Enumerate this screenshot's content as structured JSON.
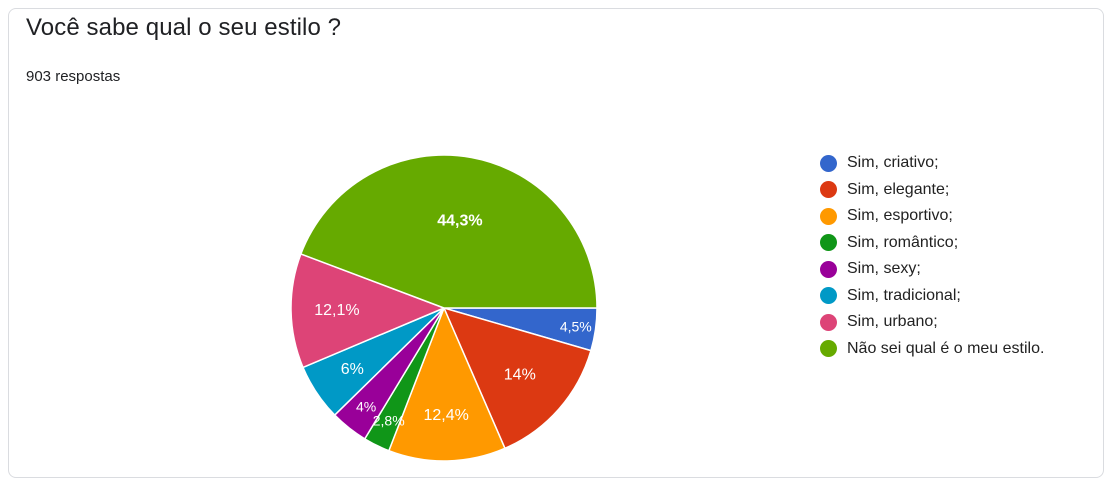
{
  "question": {
    "title": "Você sabe qual o seu estilo ?",
    "responses": "903 respostas"
  },
  "chart_data": {
    "type": "pie",
    "title": "Você sabe qual o seu estilo ?",
    "total_responses": 903,
    "legend_position": "right",
    "slices": [
      {
        "name": "Sim, criativo;",
        "value": 4.5,
        "label": "4,5%",
        "color": "#3366cc"
      },
      {
        "name": "Sim, elegante;",
        "value": 14.0,
        "label": "14%",
        "color": "#dc3912"
      },
      {
        "name": "Sim, esportivo;",
        "value": 12.4,
        "label": "12,4%",
        "color": "#ff9900"
      },
      {
        "name": "Sim, romântico;",
        "value": 2.8,
        "label": "2,8%",
        "color": "#109618"
      },
      {
        "name": "Sim, sexy;",
        "value": 4.0,
        "label": "4%",
        "color": "#990099"
      },
      {
        "name": "Sim, tradicional;",
        "value": 6.0,
        "label": "6%",
        "color": "#0099c6"
      },
      {
        "name": "Sim, urbano;",
        "value": 12.1,
        "label": "12,1%",
        "color": "#dd4477"
      },
      {
        "name": "Não sei qual é o meu estilo.",
        "value": 44.3,
        "label": "44,3%",
        "color": "#66aa00"
      }
    ]
  }
}
